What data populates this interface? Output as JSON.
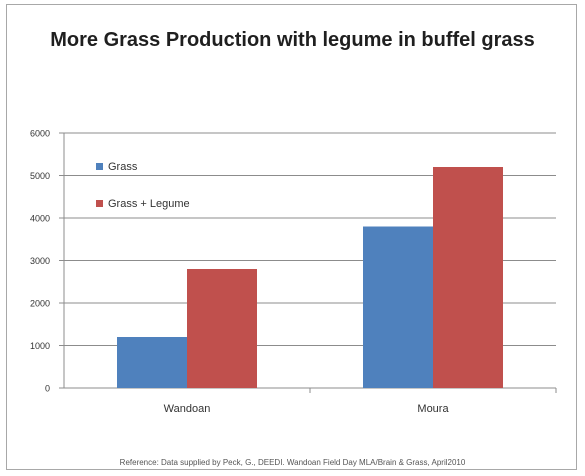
{
  "chart_data": {
    "type": "bar",
    "title": "More Grass Production with legume in buffel grass",
    "categories": [
      "Wandoan",
      "Moura"
    ],
    "series": [
      {
        "name": "Grass",
        "values": [
          1200,
          3800
        ],
        "color": "#4f81bd"
      },
      {
        "name": "Grass + Legume",
        "values": [
          2800,
          5200
        ],
        "color": "#c0504d"
      }
    ],
    "ylim": [
      0,
      6000
    ],
    "yticks": [
      0,
      1000,
      2000,
      3000,
      4000,
      5000,
      6000
    ],
    "xlabel": "",
    "ylabel": "",
    "grid": true,
    "legend": "top-left"
  },
  "reference": "Reference: Data supplied by Peck, G., DEEDI. Wandoan Field Day MLA/Brain & Grass, April2010"
}
